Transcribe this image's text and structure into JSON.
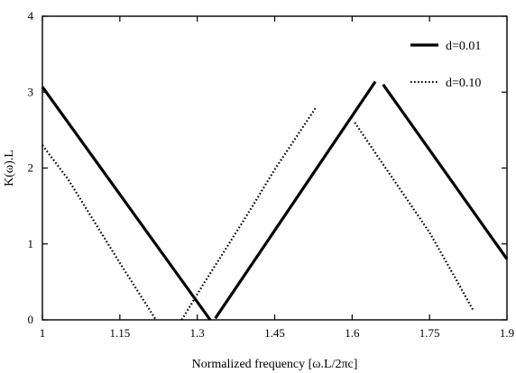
{
  "chart_data": {
    "type": "line",
    "title": "",
    "xlabel": "Normalized frequency [ω.L/2πc]",
    "ylabel": "K(ω).L",
    "xlim": [
      1.0,
      1.9
    ],
    "ylim": [
      0,
      4
    ],
    "x_ticks": [
      1.0,
      1.15,
      1.3,
      1.45,
      1.6,
      1.75,
      1.9
    ],
    "x_tick_labels": [
      "1",
      "1.15",
      "1.3",
      "1.45",
      "1.6",
      "1.75",
      "1.9"
    ],
    "y_ticks": [
      0,
      1,
      2,
      3,
      4
    ],
    "y_tick_labels": [
      "0",
      "1",
      "2",
      "3",
      "4"
    ],
    "grid": false,
    "legend_position": "top-right",
    "series": [
      {
        "name": "d=0.01",
        "style": "solid",
        "color": "#000000",
        "segments": [
          [
            [
              1.0,
              3.07
            ],
            [
              1.325,
              0.0
            ]
          ],
          [
            [
              1.335,
              0.02
            ],
            [
              1.645,
              3.14
            ]
          ],
          [
            [
              1.66,
              3.1
            ],
            [
              1.9,
              0.8
            ]
          ]
        ]
      },
      {
        "name": "d=0.10",
        "style": "dotted",
        "color": "#000000",
        "segments": [
          [
            [
              1.0,
              2.3
            ],
            [
              1.05,
              1.85
            ],
            [
              1.1,
              1.3
            ],
            [
              1.15,
              0.75
            ],
            [
              1.22,
              0.0
            ]
          ],
          [
            [
              1.27,
              0.0
            ],
            [
              1.31,
              0.45
            ],
            [
              1.35,
              0.88
            ],
            [
              1.4,
              1.42
            ],
            [
              1.45,
              1.98
            ],
            [
              1.53,
              2.8
            ]
          ],
          [
            [
              1.605,
              2.6
            ],
            [
              1.65,
              2.15
            ],
            [
              1.7,
              1.65
            ],
            [
              1.75,
              1.15
            ],
            [
              1.8,
              0.55
            ],
            [
              1.835,
              0.12
            ]
          ]
        ]
      }
    ]
  }
}
